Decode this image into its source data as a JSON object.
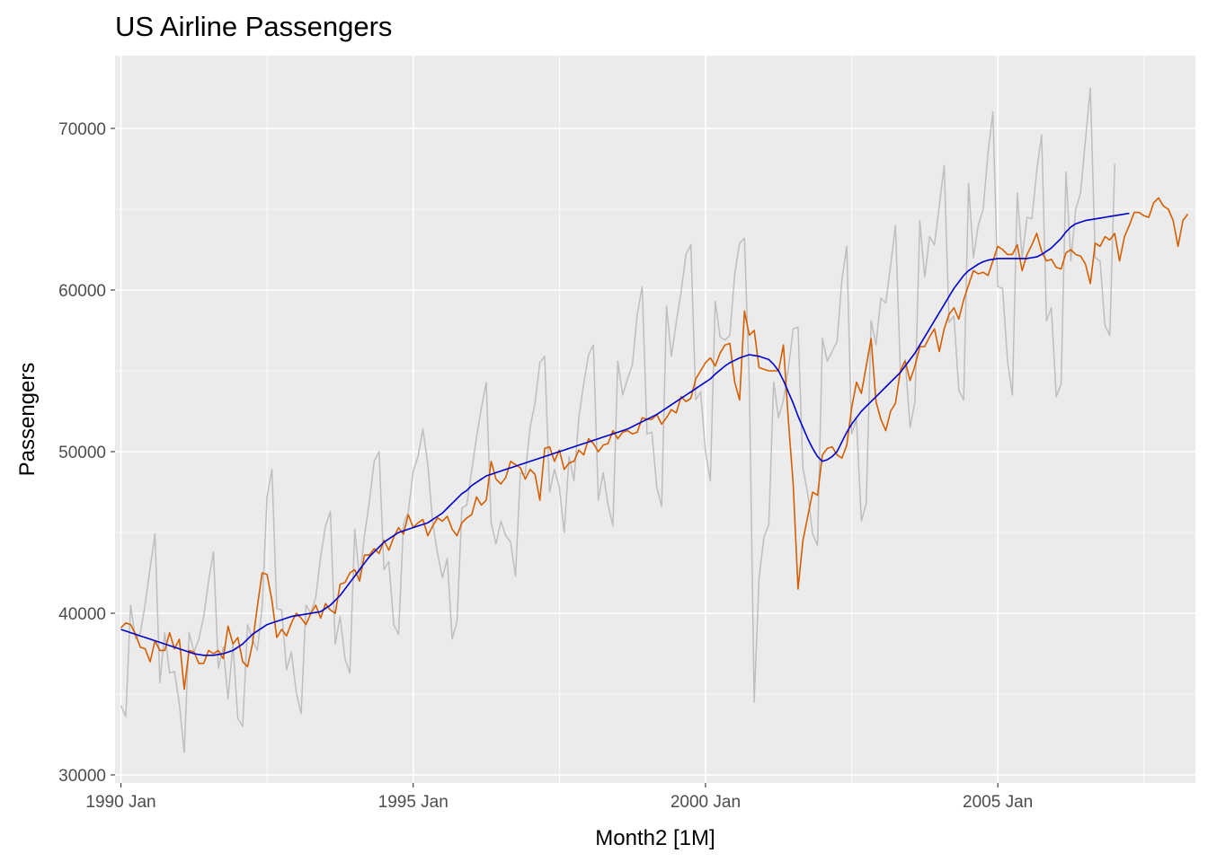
{
  "chart_data": {
    "type": "line",
    "title": "US Airline Passengers",
    "xlabel": "Month2 [1M]",
    "ylabel": "Passengers",
    "xlim": [
      1989.9,
      2008.38
    ],
    "ylim": [
      29500,
      74500
    ],
    "x_ticks": [
      {
        "label": "1990 Jan",
        "value": 1990.0
      },
      {
        "label": "1995 Jan",
        "value": 1995.0
      },
      {
        "label": "2000 Jan",
        "value": 2000.0
      },
      {
        "label": "2005 Jan",
        "value": 2005.0
      }
    ],
    "y_ticks": [
      {
        "label": "30000",
        "value": 30000
      },
      {
        "label": "40000",
        "value": 40000
      },
      {
        "label": "50000",
        "value": 50000
      },
      {
        "label": "60000",
        "value": 60000
      },
      {
        "label": "70000",
        "value": 70000
      }
    ],
    "grid": true,
    "legend": "none",
    "x_start": 1990.0,
    "x_step": 0.08333,
    "series": [
      {
        "color": "#BEBEBE",
        "role": "data",
        "values": [
          34300,
          33600,
          40500,
          38400,
          38800,
          40600,
          42800,
          44900,
          35700,
          38800,
          36300,
          36400,
          34400,
          31400,
          38800,
          37600,
          38400,
          39800,
          42000,
          43800,
          36600,
          37900,
          34700,
          38100,
          33500,
          33000,
          39300,
          38400,
          37700,
          40400,
          47200,
          48900,
          40300,
          40200,
          36500,
          37600,
          35100,
          33800,
          40500,
          40000,
          41000,
          43500,
          45400,
          46300,
          38100,
          39800,
          37200,
          36300,
          45200,
          42100,
          44800,
          46900,
          49400,
          50000,
          42700,
          43200,
          39300,
          38700,
          45500,
          46300,
          48800,
          49700,
          51400,
          49200,
          45600,
          43700,
          42200,
          43400,
          38400,
          39500,
          46500,
          46700,
          48800,
          50900,
          52700,
          54300,
          45600,
          44300,
          45700,
          44800,
          44400,
          42300,
          48700,
          48600,
          51500,
          53000,
          55500,
          55900,
          47500,
          48900,
          47800,
          45000,
          49700,
          48200,
          52100,
          54200,
          56000,
          56600,
          47000,
          48700,
          46700,
          45400,
          55600,
          53500,
          54500,
          55400,
          58500,
          60200,
          51100,
          51200,
          47800,
          46600,
          59000,
          55900,
          58000,
          59900,
          62200,
          62800,
          53200,
          53700,
          50000,
          48200,
          59300,
          57100,
          56900,
          57200,
          61000,
          62900,
          63200,
          54200,
          34500,
          42200,
          44700,
          45500,
          54300,
          52100,
          53200,
          55100,
          57600,
          57700,
          49000,
          47400,
          44900,
          44200,
          57000,
          55600,
          56200,
          56800,
          60600,
          62700,
          51100,
          52000,
          45700,
          46800,
          58100,
          56600,
          59500,
          59200,
          61500,
          64000,
          55000,
          55700,
          51500,
          53100,
          64300,
          60800,
          63300,
          62800,
          65200,
          67700,
          58000,
          58400,
          53800,
          53200,
          66600,
          62000,
          64000,
          65000,
          68500,
          71000,
          60200,
          60100,
          55600,
          53500,
          66000,
          62000,
          64500,
          64400,
          67400,
          69600,
          58100,
          58900,
          53400,
          54200,
          67300,
          61800,
          65000,
          66000,
          69300,
          72500,
          62000,
          61800,
          57800,
          57200,
          67800
        ]
      },
      {
        "color": "#D55E00",
        "role": "seasonally adjusted",
        "values": [
          39100,
          39400,
          39300,
          38700,
          37900,
          37800,
          37000,
          38300,
          37700,
          37700,
          38800,
          37800,
          38400,
          35300,
          37700,
          37600,
          36900,
          36900,
          37700,
          37500,
          37700,
          37200,
          39200,
          38100,
          38500,
          37000,
          36700,
          38100,
          40400,
          42500,
          42400,
          40800,
          38500,
          39000,
          38600,
          39400,
          40000,
          39700,
          39300,
          40000,
          40500,
          39700,
          40600,
          40200,
          40000,
          41800,
          41900,
          42500,
          42700,
          42000,
          43600,
          43600,
          44000,
          43700,
          44500,
          43900,
          44700,
          45300,
          44900,
          46100,
          45300,
          45600,
          45800,
          44800,
          45400,
          45900,
          45700,
          46000,
          45200,
          44800,
          45600,
          45900,
          46100,
          47200,
          46700,
          47000,
          49400,
          48300,
          48000,
          48400,
          49400,
          49200,
          49000,
          48300,
          48900,
          48600,
          47000,
          50200,
          50300,
          49400,
          50100,
          48900,
          49300,
          49400,
          50100,
          49800,
          50800,
          50500,
          50000,
          50400,
          50500,
          51300,
          50800,
          51200,
          51300,
          51100,
          51200,
          52100,
          52000,
          52000,
          52300,
          51700,
          52100,
          52600,
          52400,
          53400,
          53100,
          53300,
          54500,
          55000,
          55500,
          55800,
          55300,
          56100,
          56600,
          56700,
          54300,
          53200,
          58700,
          57200,
          57500,
          55200,
          55100,
          55000,
          55000,
          55000,
          56600,
          52000,
          48000,
          41500,
          44500,
          46000,
          47500,
          47300,
          49800,
          50200,
          50300,
          49800,
          49600,
          50400,
          52700,
          54300,
          53600,
          55300,
          57000,
          53100,
          52000,
          51300,
          52500,
          53000,
          55000,
          55600,
          54400,
          55300,
          56500,
          56500,
          57100,
          57600,
          56200,
          57600,
          58500,
          58900,
          58200,
          59400,
          60300,
          61200,
          61000,
          61100,
          60900,
          61800,
          62700,
          62500,
          62200,
          62200,
          62800,
          61200,
          62200,
          62800,
          63500,
          62400,
          61800,
          61900,
          61400,
          61300,
          62300,
          62500,
          62200,
          62100,
          61600,
          60400,
          62900,
          62700,
          63300,
          63100,
          63500,
          61800,
          63300,
          64000,
          64800,
          64800,
          64600,
          64500,
          65400,
          65700,
          65200,
          65000,
          64300,
          62700,
          64300,
          64700
        ]
      },
      {
        "color": "#0000CD",
        "role": "trend",
        "values": [
          39000,
          38900,
          38800,
          38700,
          38600,
          38500,
          38400,
          38300,
          38200,
          38100,
          38000,
          37900,
          37800,
          37700,
          37600,
          37500,
          37450,
          37400,
          37400,
          37400,
          37450,
          37500,
          37600,
          37700,
          37900,
          38100,
          38400,
          38700,
          38900,
          39100,
          39300,
          39400,
          39500,
          39600,
          39700,
          39800,
          39850,
          39900,
          39950,
          40000,
          40050,
          40100,
          40300,
          40500,
          40800,
          41100,
          41500,
          41900,
          42300,
          42700,
          43100,
          43500,
          43800,
          44100,
          44400,
          44600,
          44800,
          45000,
          45100,
          45200,
          45300,
          45400,
          45500,
          45600,
          45800,
          46000,
          46200,
          46500,
          46800,
          47100,
          47400,
          47600,
          47900,
          48100,
          48300,
          48500,
          48600,
          48700,
          48800,
          48900,
          49000,
          49100,
          49200,
          49300,
          49400,
          49500,
          49600,
          49700,
          49800,
          49900,
          50000,
          50100,
          50200,
          50300,
          50400,
          50500,
          50600,
          50700,
          50800,
          50900,
          51000,
          51100,
          51200,
          51300,
          51400,
          51550,
          51700,
          51850,
          52000,
          52150,
          52300,
          52500,
          52700,
          52900,
          53100,
          53300,
          53500,
          53700,
          53900,
          54100,
          54300,
          54500,
          54800,
          55050,
          55300,
          55500,
          55650,
          55800,
          55900,
          56000,
          55950,
          55900,
          55800,
          55700,
          55400,
          55000,
          54400,
          53700,
          53000,
          52200,
          51500,
          50800,
          50200,
          49700,
          49400,
          49500,
          49700,
          50000,
          50600,
          51200,
          51700,
          52100,
          52500,
          52800,
          53100,
          53400,
          53700,
          54000,
          54300,
          54600,
          54900,
          55300,
          55700,
          56100,
          56600,
          57100,
          57600,
          58100,
          58600,
          59100,
          59600,
          60100,
          60500,
          60900,
          61200,
          61400,
          61600,
          61750,
          61850,
          61900,
          61950,
          61950,
          61950,
          61950,
          61950,
          61950,
          61950,
          62000,
          62050,
          62200,
          62400,
          62600,
          62900,
          63200,
          63600,
          63900,
          64100,
          64200,
          64300,
          64350,
          64400,
          64450,
          64500,
          64550,
          64600,
          64650,
          64700,
          64750
        ]
      }
    ]
  }
}
